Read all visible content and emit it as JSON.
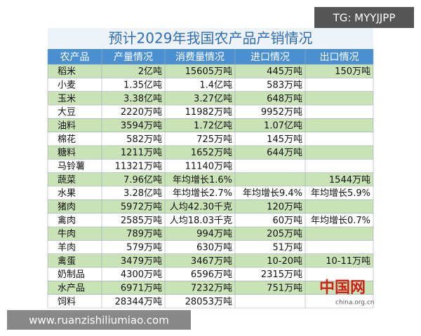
{
  "watermark_top": "TG: MYYJJPP",
  "watermark_bottom": "www.ruanzishiliumiao.com",
  "logo": {
    "mark": "中国网",
    "site": "china.org.cn"
  },
  "table": {
    "title": "预计2029年我国农产品产销情况",
    "header": [
      "农产品",
      "产量情况",
      "消费量情况",
      "进口情况",
      "出口情况"
    ],
    "rows": [
      [
        "稻米",
        "2亿吨",
        "15605万吨",
        "445万吨",
        "150万吨"
      ],
      [
        "小麦",
        "1.35亿吨",
        "1.4亿吨",
        "583万吨",
        null
      ],
      [
        "玉米",
        "3.38亿吨",
        "3.27亿吨",
        "648万吨",
        null
      ],
      [
        "大豆",
        "2220万吨",
        "11982万吨",
        "9952万吨",
        null
      ],
      [
        "油料",
        "3594万吨",
        "1.72亿吨",
        "1.07亿吨",
        null
      ],
      [
        "棉花",
        "582万吨",
        "725万吨",
        "145万吨",
        null
      ],
      [
        "糖料",
        "1211万吨",
        "1652万吨",
        "644万吨",
        null
      ],
      [
        "马铃薯",
        "11321万吨",
        "11140万吨",
        null,
        null
      ],
      [
        "蔬菜",
        "7.96亿吨",
        "年均增长1.6%",
        null,
        "1544万吨"
      ],
      [
        "水果",
        "3.28亿吨",
        "年均增长2.7%",
        "年均增长9.4%",
        "年均增长5.9%"
      ],
      [
        "猪肉",
        "5972万吨",
        "人均42.30千克",
        "120万吨",
        null
      ],
      [
        "禽肉",
        "2585万吨",
        "人均18.03千克",
        "60万吨",
        "年均增长0.7%"
      ],
      [
        "牛肉",
        "789万吨",
        "994万吨",
        "205万吨",
        null
      ],
      [
        "羊肉",
        "579万吨",
        "630万吨",
        "51万吨",
        null
      ],
      [
        "禽蛋",
        "3479万吨",
        "3467万吨",
        "10-20吨",
        "10-11万吨"
      ],
      [
        "奶制品",
        "4300万吨",
        "6596万吨",
        "2315万吨",
        null
      ],
      [
        "水产品",
        "6971万吨",
        "7232万吨",
        "751万吨",
        null
      ],
      [
        "饲料",
        "28344万吨",
        "28053万吨",
        null,
        null
      ]
    ]
  }
}
